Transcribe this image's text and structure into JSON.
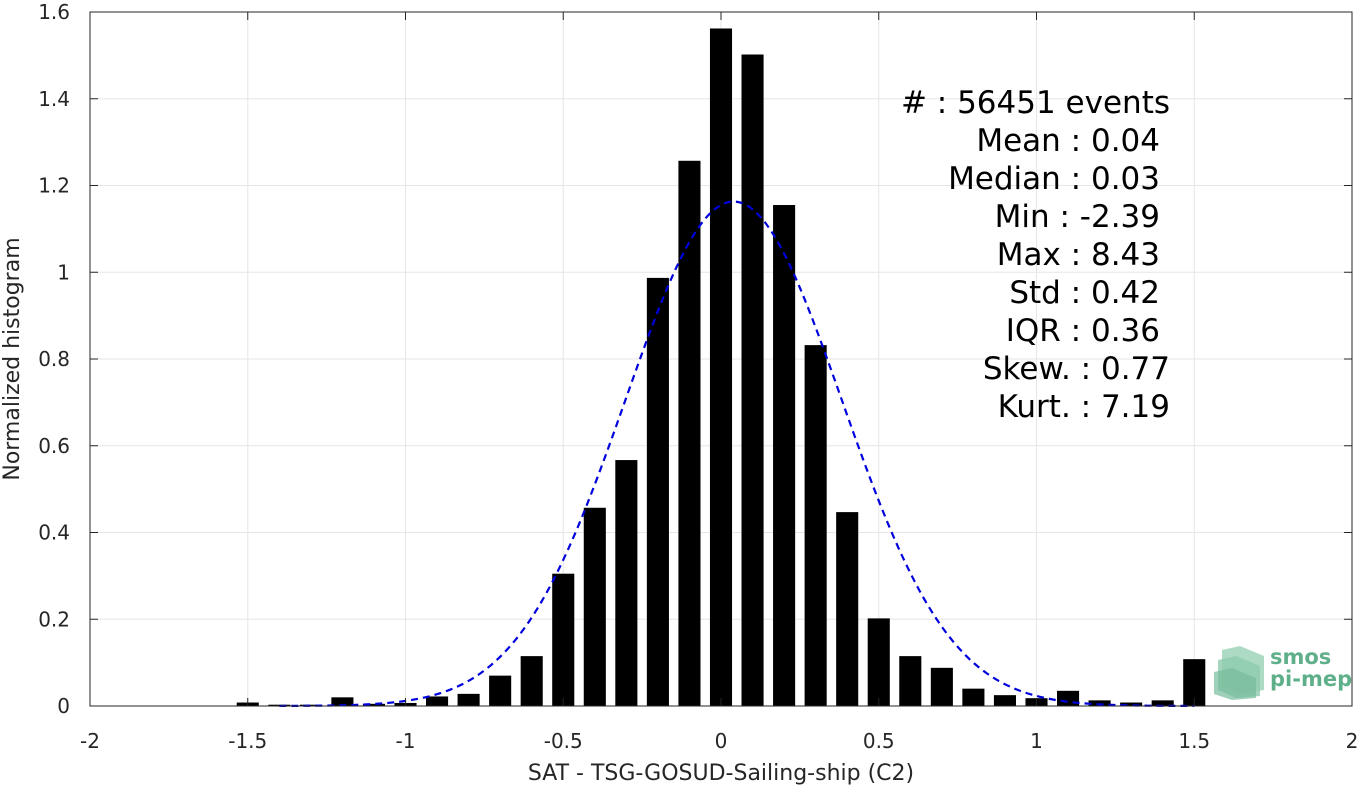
{
  "chart_data": {
    "type": "bar",
    "xlabel": "SAT - TSG-GOSUD-Sailing-ship (C2)",
    "ylabel": "Normalized histogram",
    "xlim": [
      -2,
      2
    ],
    "ylim": [
      0,
      1.6
    ],
    "xticks": [
      -2,
      -1.5,
      -1,
      -0.5,
      0,
      0.5,
      1,
      1.5,
      2
    ],
    "xtick_labels": [
      "-2",
      "-1.5",
      "-1",
      "-0.5",
      "0",
      "0.5",
      "1",
      "1.5",
      "2"
    ],
    "yticks": [
      0,
      0.2,
      0.4,
      0.6,
      0.8,
      1,
      1.2,
      1.4,
      1.6
    ],
    "ytick_labels": [
      "0",
      "0.2",
      "0.4",
      "0.6",
      "0.8",
      "1",
      "1.2",
      "1.4",
      "1.6"
    ],
    "grid": true,
    "bar_color": "#000000",
    "bars": {
      "x": [
        -1.5,
        -1.4,
        -1.3,
        -1.2,
        -1.1,
        -1.0,
        -0.9,
        -0.8,
        -0.7,
        -0.6,
        -0.5,
        -0.4,
        -0.3,
        -0.2,
        -0.1,
        0.0,
        0.1,
        0.2,
        0.3,
        0.4,
        0.5,
        0.6,
        0.7,
        0.8,
        0.9,
        1.0,
        1.1,
        1.2,
        1.3,
        1.4,
        1.5
      ],
      "values": [
        0.008,
        0.003,
        0.003,
        0.02,
        0.005,
        0.007,
        0.022,
        0.028,
        0.07,
        0.115,
        0.305,
        0.457,
        0.567,
        0.987,
        1.257,
        1.562,
        1.502,
        1.155,
        0.832,
        0.447,
        0.202,
        0.115,
        0.088,
        0.04,
        0.025,
        0.018,
        0.035,
        0.013,
        0.008,
        0.013,
        0.108
      ]
    },
    "fit": {
      "style": "dashed",
      "color": "#0000dd",
      "mean": 0.04,
      "std": 0.343,
      "peak": 1.163,
      "x_range": [
        -1.4,
        1.5
      ]
    },
    "stats_lines": [
      "#  : 56451 events",
      "Mean : 0.04",
      "Median : 0.03",
      "Min : -2.39",
      "Max : 8.43",
      "Std : 0.42",
      "IQR : 0.36",
      "Skew. : 0.77",
      "Kurt. : 7.19"
    ]
  },
  "logo": {
    "line1": "smos",
    "line2": "pi-mep",
    "color": "#5fb08a"
  }
}
